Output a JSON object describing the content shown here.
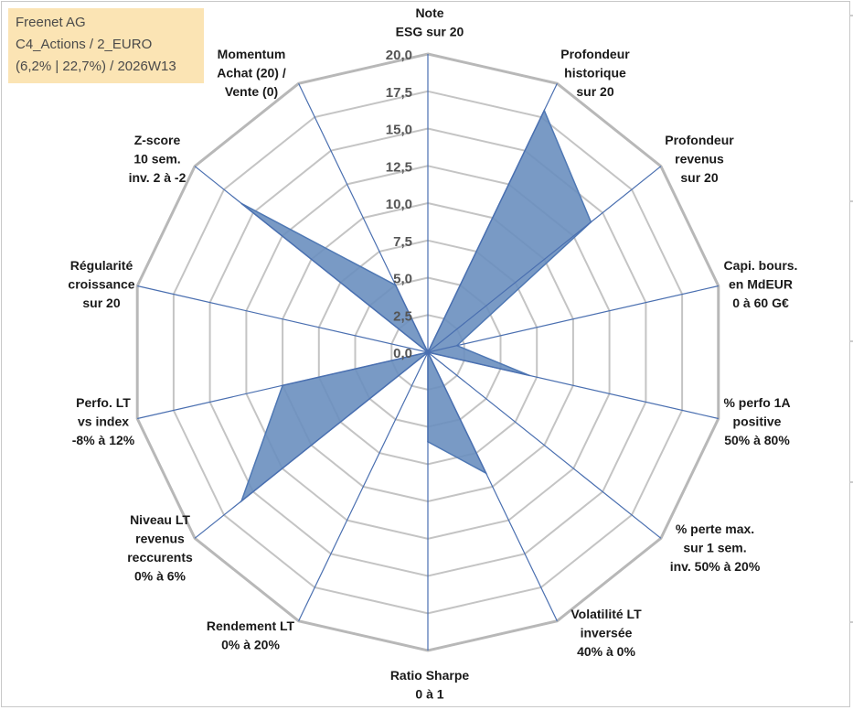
{
  "info": {
    "company": "Freenet AG",
    "portfolio": "C4_Actions / 2_EURO",
    "stats": "(6,2% | 22,7%) / 2026W13"
  },
  "chart_data": {
    "type": "radar",
    "title": "",
    "rmin": 0,
    "rmax": 20,
    "ticks": [
      0,
      2.5,
      5,
      7.5,
      10,
      12.5,
      15,
      17.5,
      20
    ],
    "tick_labels": [
      "0,0",
      "2,5",
      "5,0",
      "7,5",
      "10,0",
      "12,5",
      "15,0",
      "17,5",
      "20,0"
    ],
    "axes": [
      {
        "label": [
          "Note",
          "ESG sur 20"
        ],
        "value": 0
      },
      {
        "label": [
          "Profondeur",
          "historique",
          "sur 20"
        ],
        "value": 18
      },
      {
        "label": [
          "Profondeur",
          "revenus",
          "sur 20"
        ],
        "value": 14
      },
      {
        "label": [
          "Capi. bours.",
          "en MdEUR",
          "0 à 60 G€"
        ],
        "value": 2
      },
      {
        "label": [
          "% perfo 1A",
          "positive",
          "50% à 80%"
        ],
        "value": 7
      },
      {
        "label": [
          "% perte max.",
          "sur 1 sem.",
          "inv. 50% à 20%"
        ],
        "value": 0
      },
      {
        "label": [
          "Volatilité LT",
          "inversée",
          "40% à 0%"
        ],
        "value": 9
      },
      {
        "label": [
          "Ratio Sharpe",
          "0 à 1"
        ],
        "value": 6
      },
      {
        "label": [
          "Rendement LT",
          "0% à 20%"
        ],
        "value": 0
      },
      {
        "label": [
          "Niveau LT",
          "revenus",
          "reccurents",
          "0% à 6%"
        ],
        "value": 16
      },
      {
        "label": [
          "Perfo. LT",
          "vs index",
          "-8% à 12%"
        ],
        "value": 10
      },
      {
        "label": [
          "Régularité",
          "croissance",
          "sur 20"
        ],
        "value": 0
      },
      {
        "label": [
          "Z-score",
          "10 sem.",
          "inv. 2 à -2"
        ],
        "value": 16
      },
      {
        "label": [
          "Momentum",
          "Achat (20) /",
          "Vente (0)"
        ],
        "value": 5
      }
    ],
    "colors": {
      "fill": "#6a8fbf",
      "stroke": "#4f78b4",
      "spoke": "#4a6fb0",
      "grid": "#c4c4c4",
      "grid_outer": "#b8b8b8"
    }
  }
}
